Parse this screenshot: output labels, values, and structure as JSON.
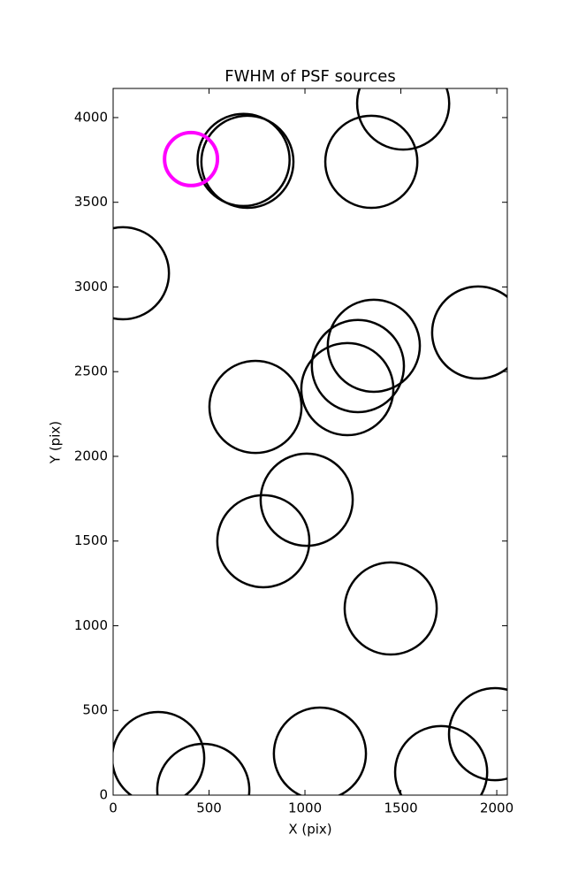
{
  "chart_data": {
    "type": "scatter",
    "title": "FWHM of PSF sources",
    "x_label": "X (pix)",
    "y_label": "Y (pix)",
    "xlim": [
      0,
      2055
    ],
    "ylim": [
      0,
      4172
    ],
    "xticks": [
      0,
      500,
      1000,
      1500,
      2000
    ],
    "yticks": [
      0,
      500,
      1000,
      1500,
      2000,
      2500,
      3000,
      3500,
      4000
    ],
    "series": [
      {
        "color": "#000000",
        "marker": "open-circle",
        "x": [
          700,
          680,
          1346,
          1512,
          51,
          1359,
          1276,
          1221,
          1903,
          742,
          1009,
          783,
          1447,
          235,
          470,
          1078,
          1710,
          1991
        ],
        "values": [
          3739,
          3750,
          3739,
          4083,
          3081,
          2653,
          2533,
          2397,
          2731,
          2292,
          1744,
          1499,
          1102,
          219,
          31,
          245,
          136,
          360
        ],
        "sizes": [
          240,
          240,
          240,
          240,
          240,
          240,
          240,
          240,
          240,
          240,
          240,
          240,
          240,
          240,
          240,
          240,
          240,
          240
        ]
      },
      {
        "color": "#ff00ff",
        "marker": "open-circle",
        "x": [
          406
        ],
        "values": [
          3755
        ],
        "sizes": [
          138
        ]
      }
    ]
  }
}
